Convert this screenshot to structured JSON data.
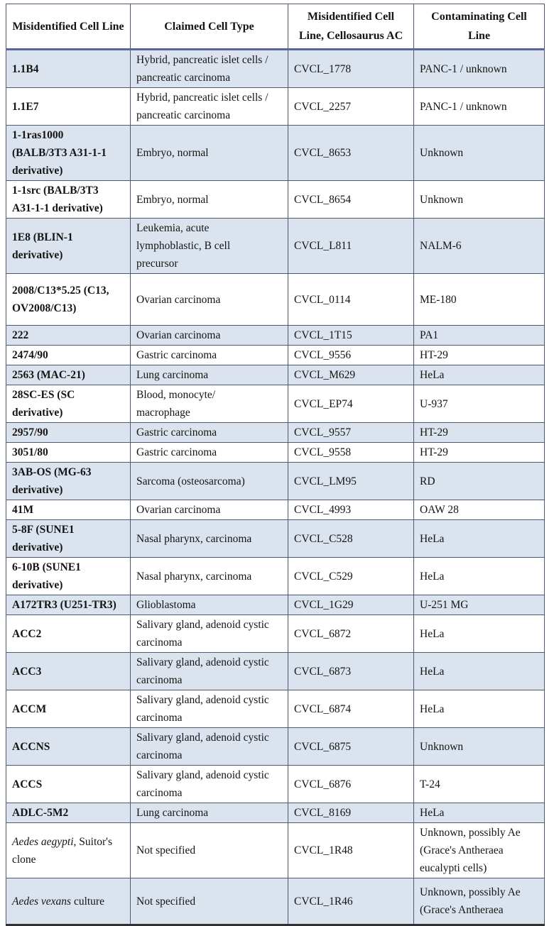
{
  "colors": {
    "row_stripe": "#dbe4ee",
    "header_rule": "#5b679a",
    "grid_border": "#4d5872",
    "text": "#141414"
  },
  "table": {
    "headers": [
      "Misidentified Cell Line",
      "Claimed Cell Type",
      "Misidentified Cell Line, Cellosaurus AC",
      "Contaminating Cell Line"
    ],
    "rows": [
      {
        "name_italic": "",
        "name": "1.1B4",
        "claimed": "Hybrid, pancreatic islet cells /\npancreatic carcinoma",
        "ac": "CVCL_1778",
        "contam": "PANC-1 / unknown"
      },
      {
        "name_italic": "",
        "name": "1.1E7",
        "claimed": "Hybrid, pancreatic islet cells /\npancreatic carcinoma",
        "ac": "CVCL_2257",
        "contam": "PANC-1 / unknown"
      },
      {
        "name_italic": "",
        "name": "1-1ras1000\n(BALB/3T3 A31-1-1\nderivative)",
        "claimed": "Embryo, normal",
        "ac": "CVCL_8653",
        "contam": "Unknown"
      },
      {
        "name_italic": "",
        "name": "1-1src (BALB/3T3\nA31-1-1 derivative)",
        "claimed": "Embryo, normal",
        "ac": "CVCL_8654",
        "contam": "Unknown"
      },
      {
        "name_italic": "",
        "name": "1E8 (BLIN-1\nderivative)",
        "claimed": "Leukemia, acute\nlymphoblastic, B cell\nprecursor",
        "ac": "CVCL_L811",
        "contam": "NALM-6"
      },
      {
        "name_italic": "",
        "name": "2008/C13*5.25 (C13,\nOV2008/C13)",
        "claimed": "Ovarian carcinoma",
        "ac": "CVCL_0114",
        "contam": "ME-180"
      },
      {
        "name_italic": "",
        "name": "222",
        "claimed": "Ovarian carcinoma",
        "ac": "CVCL_1T15",
        "contam": "PA1"
      },
      {
        "name_italic": "",
        "name": "2474/90",
        "claimed": "Gastric carcinoma",
        "ac": "CVCL_9556",
        "contam": "HT-29"
      },
      {
        "name_italic": "",
        "name": "2563 (MAC-21)",
        "claimed": "Lung carcinoma",
        "ac": "CVCL_M629",
        "contam": "HeLa"
      },
      {
        "name_italic": "",
        "name": "28SC-ES (SC\nderivative)",
        "claimed": "Blood, monocyte/\nmacrophage",
        "ac": "CVCL_EP74",
        "contam": "U-937"
      },
      {
        "name_italic": "",
        "name": "2957/90",
        "claimed": "Gastric carcinoma",
        "ac": "CVCL_9557",
        "contam": "HT-29"
      },
      {
        "name_italic": "",
        "name": "3051/80",
        "claimed": "Gastric carcinoma",
        "ac": "CVCL_9558",
        "contam": "HT-29"
      },
      {
        "name_italic": "",
        "name": "3AB-OS (MG-63\nderivative)",
        "claimed": "Sarcoma (osteosarcoma)",
        "ac": "CVCL_LM95",
        "contam": "RD"
      },
      {
        "name_italic": "",
        "name": "41M",
        "claimed": "Ovarian carcinoma",
        "ac": "CVCL_4993",
        "contam": "OAW 28"
      },
      {
        "name_italic": "",
        "name": "5-8F (SUNE1\nderivative)",
        "claimed": "Nasal pharynx, carcinoma",
        "ac": "CVCL_C528",
        "contam": "HeLa"
      },
      {
        "name_italic": "",
        "name": "6-10B (SUNE1\nderivative)",
        "claimed": "Nasal pharynx, carcinoma",
        "ac": "CVCL_C529",
        "contam": "HeLa"
      },
      {
        "name_italic": "",
        "name": "A172TR3 (U251-TR3)",
        "claimed": "Glioblastoma",
        "ac": "CVCL_1G29",
        "contam": "U-251 MG"
      },
      {
        "name_italic": "",
        "name": "ACC2",
        "claimed": "Salivary gland, adenoid cystic\ncarcinoma",
        "ac": "CVCL_6872",
        "contam": "HeLa"
      },
      {
        "name_italic": "",
        "name": "ACC3",
        "claimed": "Salivary gland, adenoid cystic\ncarcinoma",
        "ac": "CVCL_6873",
        "contam": "HeLa"
      },
      {
        "name_italic": "",
        "name": "ACCM",
        "claimed": "Salivary gland, adenoid cystic\ncarcinoma",
        "ac": "CVCL_6874",
        "contam": "HeLa"
      },
      {
        "name_italic": "",
        "name": "ACCNS",
        "claimed": "Salivary gland, adenoid cystic\ncarcinoma",
        "ac": "CVCL_6875",
        "contam": "Unknown"
      },
      {
        "name_italic": "",
        "name": "ACCS",
        "claimed": "Salivary gland, adenoid cystic\ncarcinoma",
        "ac": "CVCL_6876",
        "contam": "T-24"
      },
      {
        "name_italic": "",
        "name": "ADLC-5M2",
        "claimed": "Lung carcinoma",
        "ac": "CVCL_8169",
        "contam": "HeLa"
      },
      {
        "name_italic": "Aedes aegypti",
        "name": ", Suitor's\nclone",
        "claimed": "Not specified",
        "ac": "CVCL_1R48",
        "contam": "Unknown, possibly Ae\n(Grace's Antheraea\neucalypti cells)"
      },
      {
        "name_italic": "Aedes vexans",
        "name": " culture",
        "claimed": "Not specified",
        "ac": "CVCL_1R46",
        "contam": "Unknown, possibly Ae\n(Grace's Antheraea"
      }
    ]
  }
}
